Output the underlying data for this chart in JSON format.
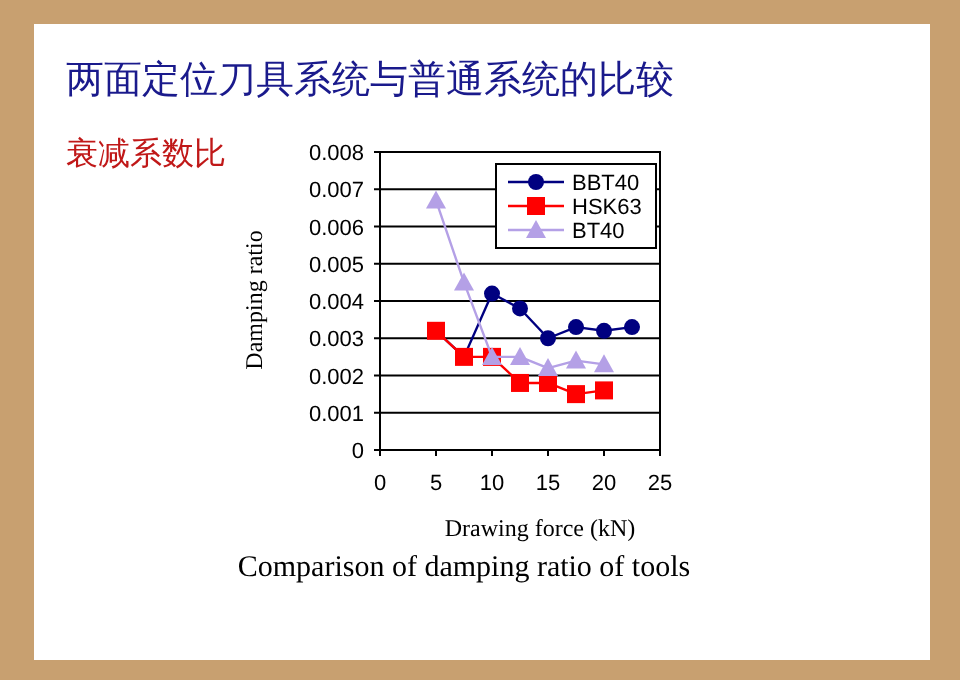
{
  "chart_data": {
    "type": "line",
    "title": "两面定位刀具系统与普通系统的比较",
    "subtitle": "衰减系数比",
    "xlabel": "Drawing force (kN)",
    "ylabel": "Damping ratio",
    "annotations": [
      "Comparison of damping ratio of tools"
    ],
    "x": [
      5,
      7.5,
      10,
      12.5,
      15,
      17.5,
      20,
      22.5
    ],
    "xlim": [
      0,
      25
    ],
    "xticks": [
      0,
      5,
      10,
      15,
      20,
      25
    ],
    "ylim": [
      0,
      0.008
    ],
    "yticks": [
      0,
      0.001,
      0.002,
      0.003,
      0.004,
      0.005,
      0.006,
      0.007,
      0.008
    ],
    "grid": "y",
    "legend": "top right",
    "series": [
      {
        "name": "BBT40",
        "color": "#000080",
        "marker": "circle",
        "values": [
          0.0032,
          0.0025,
          0.0042,
          0.0038,
          0.003,
          0.0033,
          0.0032,
          0.0033
        ]
      },
      {
        "name": "HSK63",
        "color": "#ff0000",
        "marker": "square",
        "values": [
          0.0032,
          0.0025,
          0.0025,
          0.0018,
          0.0018,
          0.0015,
          0.0016,
          null
        ]
      },
      {
        "name": "BT40",
        "color": "#b4a0e6",
        "marker": "triangle",
        "values": [
          0.0067,
          0.0045,
          0.0025,
          0.0025,
          0.0022,
          0.0024,
          0.0023,
          null
        ]
      }
    ]
  }
}
